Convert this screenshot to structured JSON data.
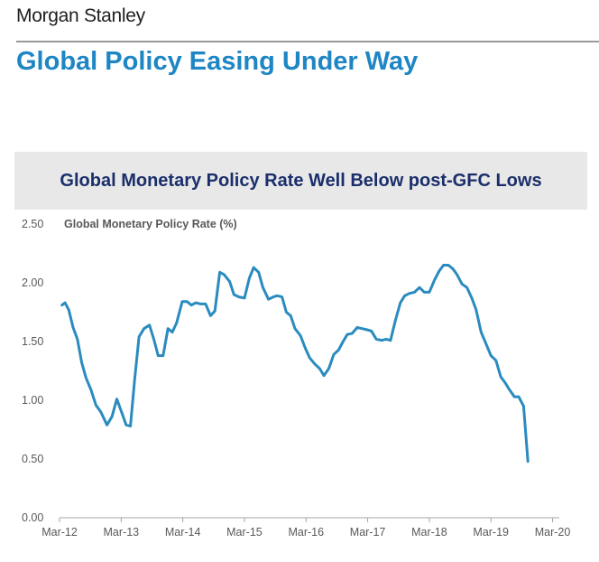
{
  "header": {
    "brand": "Morgan Stanley",
    "title": "Global Policy Easing Under Way"
  },
  "colors": {
    "accent": "#1e86c4",
    "banner_bg": "#e8e8e8",
    "banner_text": "#1a2e6b",
    "line": "#2a8bbf"
  },
  "chart_data": {
    "type": "line",
    "title": "Global Monetary Policy Rate Well Below post-GFC Lows",
    "series_label": "Global Monetary Policy Rate (%)",
    "ylim": [
      0,
      2.5
    ],
    "yticks": [
      "0.00",
      "0.50",
      "1.00",
      "1.50",
      "2.00",
      "2.50"
    ],
    "xlim": [
      2012.17,
      2020.25
    ],
    "xticks": [
      {
        "label": "Mar-12",
        "x": 2012.17
      },
      {
        "label": "Mar-13",
        "x": 2013.17
      },
      {
        "label": "Mar-14",
        "x": 2014.17
      },
      {
        "label": "Mar-15",
        "x": 2015.17
      },
      {
        "label": "Mar-16",
        "x": 2016.17
      },
      {
        "label": "Mar-17",
        "x": 2017.17
      },
      {
        "label": "Mar-18",
        "x": 2018.17
      },
      {
        "label": "Mar-19",
        "x": 2019.17
      },
      {
        "label": "Mar-20",
        "x": 2020.17
      }
    ],
    "grid": false,
    "series": [
      {
        "points": [
          [
            2012.21,
            1.81
          ],
          [
            2012.26,
            1.83
          ],
          [
            2012.32,
            1.77
          ],
          [
            2012.39,
            1.62
          ],
          [
            2012.46,
            1.52
          ],
          [
            2012.53,
            1.32
          ],
          [
            2012.6,
            1.19
          ],
          [
            2012.68,
            1.09
          ],
          [
            2012.76,
            0.96
          ],
          [
            2012.84,
            0.9
          ],
          [
            2012.94,
            0.79
          ],
          [
            2013.02,
            0.86
          ],
          [
            2013.1,
            1.01
          ],
          [
            2013.19,
            0.88
          ],
          [
            2013.25,
            0.79
          ],
          [
            2013.32,
            0.78
          ],
          [
            2013.39,
            1.18
          ],
          [
            2013.46,
            1.54
          ],
          [
            2013.54,
            1.61
          ],
          [
            2013.63,
            1.64
          ],
          [
            2013.7,
            1.52
          ],
          [
            2013.77,
            1.38
          ],
          [
            2013.85,
            1.38
          ],
          [
            2013.93,
            1.61
          ],
          [
            2014.0,
            1.58
          ],
          [
            2014.07,
            1.66
          ],
          [
            2014.16,
            1.84
          ],
          [
            2014.24,
            1.84
          ],
          [
            2014.31,
            1.81
          ],
          [
            2014.38,
            1.83
          ],
          [
            2014.46,
            1.82
          ],
          [
            2014.54,
            1.82
          ],
          [
            2014.62,
            1.72
          ],
          [
            2014.69,
            1.76
          ],
          [
            2014.77,
            2.09
          ],
          [
            2014.84,
            2.07
          ],
          [
            2014.93,
            2.01
          ],
          [
            2015.0,
            1.9
          ],
          [
            2015.08,
            1.88
          ],
          [
            2015.17,
            1.87
          ],
          [
            2015.25,
            2.04
          ],
          [
            2015.32,
            2.13
          ],
          [
            2015.4,
            2.09
          ],
          [
            2015.47,
            1.96
          ],
          [
            2015.56,
            1.86
          ],
          [
            2015.64,
            1.88
          ],
          [
            2015.7,
            1.89
          ],
          [
            2015.78,
            1.88
          ],
          [
            2015.85,
            1.75
          ],
          [
            2015.92,
            1.72
          ],
          [
            2015.99,
            1.61
          ],
          [
            2016.08,
            1.55
          ],
          [
            2016.16,
            1.44
          ],
          [
            2016.23,
            1.36
          ],
          [
            2016.31,
            1.31
          ],
          [
            2016.39,
            1.27
          ],
          [
            2016.46,
            1.21
          ],
          [
            2016.54,
            1.27
          ],
          [
            2016.62,
            1.39
          ],
          [
            2016.7,
            1.43
          ],
          [
            2016.77,
            1.5
          ],
          [
            2016.84,
            1.56
          ],
          [
            2016.92,
            1.57
          ],
          [
            2017.0,
            1.62
          ],
          [
            2017.08,
            1.61
          ],
          [
            2017.16,
            1.6
          ],
          [
            2017.23,
            1.59
          ],
          [
            2017.31,
            1.52
          ],
          [
            2017.4,
            1.51
          ],
          [
            2017.47,
            1.52
          ],
          [
            2017.54,
            1.51
          ],
          [
            2017.62,
            1.68
          ],
          [
            2017.7,
            1.83
          ],
          [
            2017.77,
            1.89
          ],
          [
            2017.85,
            1.91
          ],
          [
            2017.93,
            1.92
          ],
          [
            2018.01,
            1.96
          ],
          [
            2018.09,
            1.92
          ],
          [
            2018.17,
            1.92
          ],
          [
            2018.25,
            2.02
          ],
          [
            2018.33,
            2.1
          ],
          [
            2018.4,
            2.15
          ],
          [
            2018.48,
            2.15
          ],
          [
            2018.55,
            2.12
          ],
          [
            2018.62,
            2.07
          ],
          [
            2018.7,
            1.99
          ],
          [
            2018.78,
            1.96
          ],
          [
            2018.86,
            1.87
          ],
          [
            2018.93,
            1.77
          ],
          [
            2019.01,
            1.58
          ],
          [
            2019.09,
            1.48
          ],
          [
            2019.17,
            1.38
          ],
          [
            2019.25,
            1.34
          ],
          [
            2019.33,
            1.2
          ],
          [
            2019.4,
            1.15
          ],
          [
            2019.47,
            1.09
          ],
          [
            2019.55,
            1.03
          ],
          [
            2019.62,
            1.03
          ],
          [
            2019.7,
            0.95
          ],
          [
            2019.77,
            0.48
          ]
        ]
      }
    ]
  }
}
